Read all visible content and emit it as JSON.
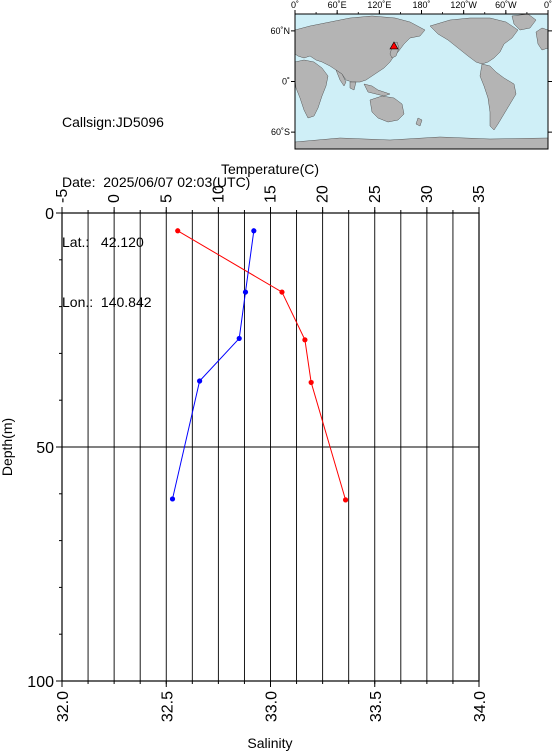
{
  "station": {
    "callsign_label": "Callsign:",
    "callsign": "JD5096",
    "date_label": "Date:",
    "date": "2025/06/07 02:03(UTC)",
    "lat_label": "Lat.:",
    "lat": "42.120",
    "lon_label": "Lon.:",
    "lon": "140.842"
  },
  "map": {
    "top_ticks": [
      "0˚",
      "60˚E",
      "120˚E",
      "180˚",
      "120˚W",
      "60˚W",
      "0˚"
    ],
    "lat_ticks": [
      "60˚N",
      "0˚",
      "60˚S"
    ],
    "marker": {
      "lat": 42.12,
      "lon": 140.842
    },
    "colors": {
      "ocean": "#cfeff7",
      "land": "#b4b4b4",
      "marker": "#ff0000"
    }
  },
  "chart_data": {
    "type": "line",
    "ylabel": "Depth(m)",
    "ylim": [
      0,
      100
    ],
    "yticks": [
      "0",
      "50",
      "100"
    ],
    "ytick_values": [
      0,
      50,
      100
    ],
    "x_top": {
      "label": "Temperature(C)",
      "lim": [
        -5,
        35
      ],
      "ticks": [
        "-5",
        "0",
        "5",
        "10",
        "15",
        "20",
        "25",
        "30",
        "35"
      ],
      "tick_values": [
        -5,
        0,
        5,
        10,
        15,
        20,
        25,
        30,
        35
      ]
    },
    "x_bottom": {
      "label": "Salinity",
      "lim": [
        32.0,
        34.0
      ],
      "ticks": [
        "32.0",
        "32.5",
        "33.0",
        "33.5",
        "34.0"
      ],
      "tick_values": [
        32.0,
        32.5,
        33.0,
        33.5,
        34.0
      ]
    },
    "grid": true,
    "series": [
      {
        "axis": "top",
        "color": "#ff0000",
        "points": [
          {
            "x": 6.1,
            "y": 3.8
          },
          {
            "x": 16.1,
            "y": 16.9
          },
          {
            "x": 18.3,
            "y": 27.1
          },
          {
            "x": 18.9,
            "y": 36.2
          },
          {
            "x": 22.2,
            "y": 61.3
          }
        ]
      },
      {
        "axis": "bottom",
        "color": "#0000ff",
        "points": [
          {
            "x": 32.92,
            "y": 3.8
          },
          {
            "x": 32.88,
            "y": 16.9
          },
          {
            "x": 32.85,
            "y": 26.8
          },
          {
            "x": 32.66,
            "y": 35.9
          },
          {
            "x": 32.53,
            "y": 61.1
          }
        ]
      }
    ]
  }
}
